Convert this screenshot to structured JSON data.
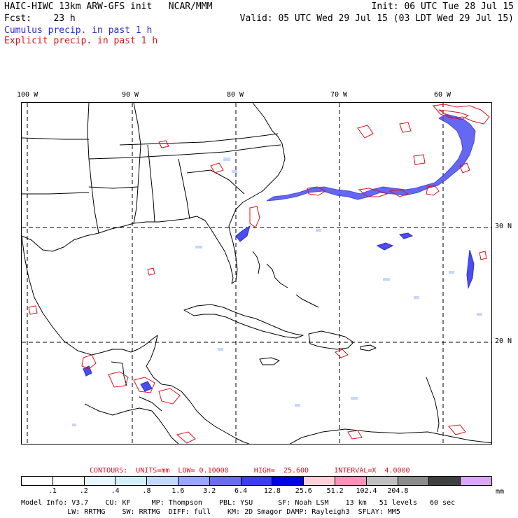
{
  "header": {
    "left_line1": "HAIC-HIWC 13km ARW-GFS init   NCAR/MMM",
    "right_line1": "Init: 06 UTC Tue 28 Jul 15",
    "left_line2": "Fcst:    23 h",
    "right_line2": "Valid: 05 UTC Wed 29 Jul 15 (03 LDT Wed 29 Jul 15)",
    "cumulus_label": "Cumulus precip. in past 1 h",
    "explicit_label": "Explicit precip. in past 1 h",
    "cumulus_color": "#2b2bd6",
    "explicit_color": "#e0101a"
  },
  "map": {
    "lon_labels": [
      "100 W",
      "90 W",
      "80 W",
      "70 W",
      "60 W"
    ],
    "lat_labels": [
      "30 N",
      "20 N"
    ]
  },
  "contours": {
    "text": "CONTOURS:  UNITS=mm  LOW= 0.10000      HIGH=  25.600      INTERVAL=X  4.0000",
    "color": "#e0101a"
  },
  "colorbar": {
    "ticks": [
      ".1",
      ".2",
      ".4",
      ".8",
      "1.6",
      "3.2",
      "6.4",
      "12.8",
      "25.6",
      "51.2",
      "102.4",
      "204.8"
    ],
    "unit": "mm",
    "colors": [
      "#ffffff",
      "#ffffff",
      "#e8f6ff",
      "#d4eefc",
      "#c4d8ff",
      "#9aa6ff",
      "#6a6cf2",
      "#3c3cf0",
      "#0000e8",
      "#ffd0d8",
      "#ff90b8",
      "#c0c0c0",
      "#8c8c8c",
      "#404040",
      "#d8a8f4"
    ]
  },
  "footer": {
    "line1": "Model Info: V3.7    CU: KF     MP: Thompson    PBL: YSU      SF: Noah LSM    13 km   51 levels   60 sec",
    "line2": "           LW: RRTMG    SW: RRTMG  DIFF: full    KM: 2D Smagor DAMP: Rayleigh3  SFLAY: MM5"
  }
}
